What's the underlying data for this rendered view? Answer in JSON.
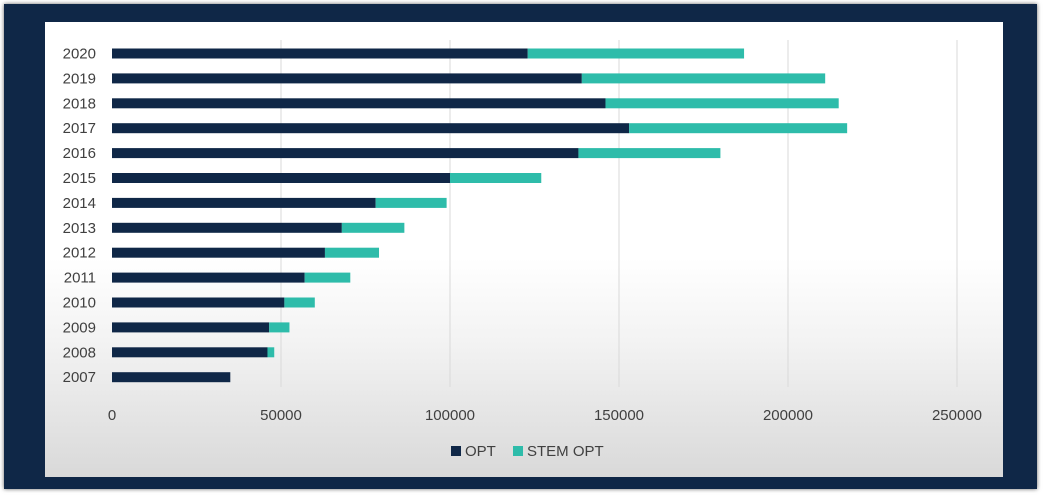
{
  "chart_data": {
    "type": "bar",
    "orientation": "horizontal",
    "stacked": true,
    "title": "",
    "xlabel": "",
    "ylabel": "",
    "categories": [
      "2020",
      "2019",
      "2018",
      "2017",
      "2016",
      "2015",
      "2014",
      "2013",
      "2012",
      "2011",
      "2010",
      "2009",
      "2008",
      "2007"
    ],
    "series": [
      {
        "name": "OPT",
        "color": "#0f2747",
        "values": [
          123000,
          139000,
          146000,
          153000,
          138000,
          100000,
          78000,
          68000,
          63000,
          57000,
          51000,
          46500,
          46000,
          35000
        ]
      },
      {
        "name": "STEM OPT",
        "color": "#2ebcaa",
        "values": [
          64000,
          72000,
          69000,
          64500,
          42000,
          27000,
          21000,
          18500,
          16000,
          13500,
          9000,
          6000,
          2000,
          0
        ]
      }
    ],
    "xlim": [
      0,
      250000
    ],
    "xticks": [
      "0",
      "50000",
      "100000",
      "150000",
      "200000",
      "250000"
    ],
    "xtick_values": [
      0,
      50000,
      100000,
      150000,
      200000,
      250000
    ],
    "grid": "vertical",
    "legend_position": "bottom-center"
  }
}
